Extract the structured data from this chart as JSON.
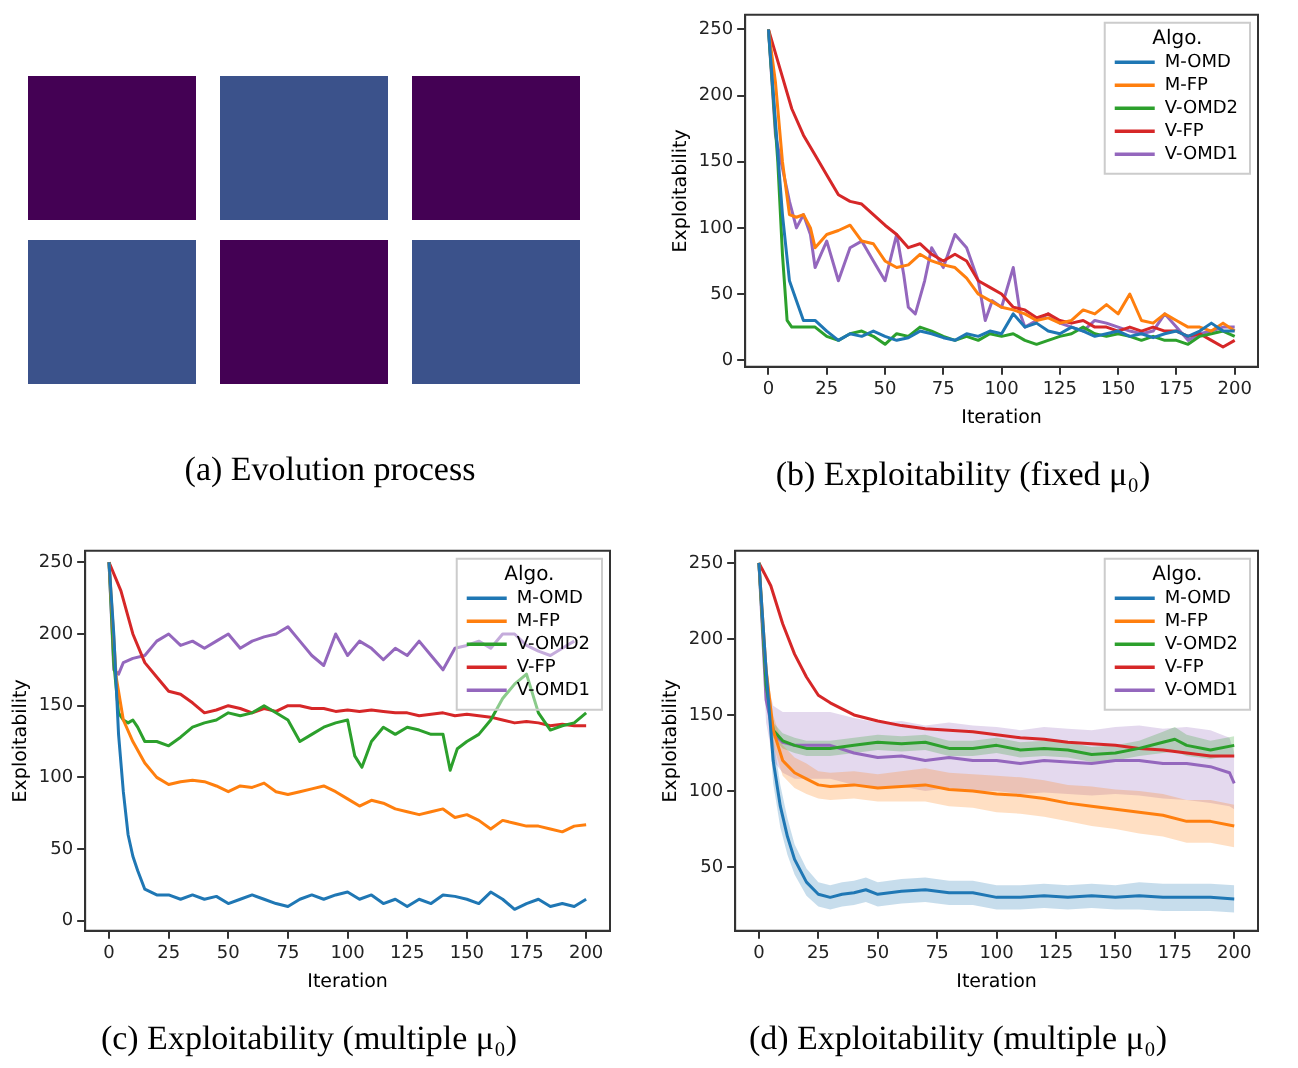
{
  "chart_data": [
    {
      "type": "other",
      "title": "(a) Evolution process"
    },
    {
      "type": "line",
      "title": "(b) Exploitability (fixed μ₀)",
      "xlabel": "Iteration",
      "ylabel": "Exploitability",
      "legend_title": "Algo.",
      "legend": "top right",
      "xlim": [
        -10,
        210
      ],
      "ylim": [
        -5,
        261
      ],
      "xticks": [
        0,
        25,
        50,
        75,
        100,
        125,
        150,
        175,
        200
      ],
      "yticks": [
        0,
        50,
        100,
        150,
        200,
        250
      ],
      "series": [
        {
          "name": "M-OMD",
          "color": "#1f77b4",
          "x": [
            0,
            3,
            6,
            9,
            12,
            15,
            20,
            25,
            30,
            35,
            40,
            45,
            50,
            55,
            60,
            65,
            70,
            75,
            80,
            85,
            90,
            95,
            100,
            105,
            110,
            115,
            120,
            125,
            130,
            135,
            140,
            145,
            150,
            155,
            160,
            165,
            170,
            175,
            180,
            185,
            190,
            195,
            200
          ],
          "values": [
            250,
            180,
            110,
            60,
            45,
            30,
            30,
            22,
            15,
            20,
            18,
            22,
            18,
            15,
            17,
            22,
            20,
            17,
            15,
            20,
            18,
            22,
            20,
            35,
            25,
            28,
            22,
            20,
            25,
            22,
            18,
            20,
            22,
            18,
            20,
            17,
            20,
            22,
            18,
            22,
            28,
            22,
            22
          ]
        },
        {
          "name": "M-FP",
          "color": "#ff7f0e",
          "x": [
            0,
            3,
            6,
            9,
            12,
            15,
            18,
            20,
            25,
            30,
            35,
            40,
            45,
            50,
            55,
            60,
            65,
            70,
            75,
            80,
            85,
            90,
            95,
            100,
            105,
            110,
            115,
            120,
            125,
            130,
            135,
            140,
            145,
            150,
            155,
            160,
            165,
            170,
            175,
            180,
            185,
            190,
            195,
            200
          ],
          "values": [
            250,
            210,
            150,
            110,
            108,
            110,
            100,
            85,
            95,
            98,
            102,
            90,
            88,
            75,
            70,
            72,
            80,
            75,
            72,
            70,
            62,
            50,
            45,
            40,
            38,
            35,
            30,
            32,
            28,
            30,
            38,
            35,
            42,
            35,
            50,
            30,
            28,
            35,
            30,
            25,
            25,
            22,
            28,
            22
          ]
        },
        {
          "name": "V-OMD2",
          "color": "#2ca02c",
          "x": [
            0,
            2,
            4,
            6,
            8,
            10,
            15,
            20,
            25,
            30,
            35,
            40,
            45,
            50,
            55,
            60,
            65,
            70,
            75,
            80,
            85,
            90,
            95,
            100,
            105,
            110,
            115,
            120,
            125,
            130,
            135,
            140,
            145,
            150,
            155,
            160,
            165,
            170,
            175,
            180,
            185,
            190,
            195,
            200
          ],
          "values": [
            250,
            200,
            150,
            80,
            30,
            25,
            25,
            25,
            18,
            15,
            20,
            22,
            18,
            12,
            20,
            18,
            25,
            22,
            18,
            15,
            18,
            15,
            20,
            18,
            20,
            15,
            12,
            15,
            18,
            20,
            25,
            20,
            18,
            20,
            18,
            15,
            18,
            15,
            15,
            12,
            18,
            20,
            22,
            18
          ]
        },
        {
          "name": "V-FP",
          "color": "#d62728",
          "x": [
            0,
            5,
            10,
            15,
            20,
            25,
            30,
            35,
            40,
            45,
            50,
            55,
            60,
            65,
            70,
            75,
            80,
            85,
            90,
            95,
            100,
            105,
            110,
            115,
            120,
            125,
            130,
            135,
            140,
            145,
            150,
            155,
            160,
            165,
            170,
            175,
            180,
            185,
            190,
            195,
            200
          ],
          "values": [
            250,
            220,
            190,
            170,
            155,
            140,
            125,
            120,
            118,
            110,
            102,
            95,
            85,
            88,
            80,
            75,
            80,
            75,
            60,
            55,
            50,
            40,
            38,
            32,
            35,
            30,
            28,
            30,
            25,
            25,
            22,
            25,
            22,
            25,
            22,
            22,
            18,
            20,
            15,
            10,
            15
          ]
        },
        {
          "name": "V-OMD1",
          "color": "#9467bd",
          "x": [
            0,
            3,
            6,
            9,
            12,
            15,
            18,
            20,
            25,
            30,
            35,
            40,
            45,
            50,
            55,
            58,
            60,
            63,
            67,
            70,
            75,
            80,
            85,
            90,
            93,
            96,
            100,
            105,
            108,
            110,
            115,
            120,
            125,
            130,
            135,
            140,
            145,
            150,
            155,
            160,
            165,
            170,
            175,
            180,
            185,
            190,
            195,
            200
          ],
          "values": [
            250,
            170,
            145,
            120,
            100,
            110,
            95,
            70,
            90,
            60,
            85,
            90,
            75,
            60,
            95,
            65,
            40,
            35,
            60,
            85,
            70,
            95,
            85,
            60,
            30,
            45,
            40,
            70,
            35,
            25,
            30,
            35,
            28,
            25,
            22,
            30,
            28,
            25,
            22,
            20,
            22,
            35,
            25,
            15,
            20,
            22,
            25,
            25
          ]
        }
      ]
    },
    {
      "type": "line",
      "title": "(c) Exploitability (multiple μ₀)",
      "xlabel": "Iteration",
      "ylabel": "Exploitability",
      "legend_title": "Algo.",
      "legend": "top right",
      "xlim": [
        -10,
        210
      ],
      "ylim": [
        -7,
        258
      ],
      "xticks": [
        0,
        25,
        50,
        75,
        100,
        125,
        150,
        175,
        200
      ],
      "yticks": [
        0,
        50,
        100,
        150,
        200,
        250
      ],
      "series": [
        {
          "name": "M-OMD",
          "color": "#1f77b4",
          "x": [
            0,
            2,
            4,
            6,
            8,
            10,
            12,
            15,
            20,
            25,
            30,
            35,
            40,
            45,
            50,
            55,
            60,
            65,
            70,
            75,
            80,
            85,
            90,
            95,
            100,
            105,
            110,
            115,
            120,
            125,
            130,
            135,
            140,
            145,
            150,
            155,
            160,
            165,
            170,
            175,
            180,
            185,
            190,
            195,
            200
          ],
          "values": [
            250,
            200,
            130,
            90,
            60,
            45,
            35,
            22,
            18,
            18,
            15,
            18,
            15,
            17,
            12,
            15,
            18,
            15,
            12,
            10,
            15,
            18,
            15,
            18,
            20,
            15,
            18,
            12,
            15,
            10,
            15,
            12,
            18,
            17,
            15,
            12,
            20,
            15,
            8,
            12,
            15,
            10,
            12,
            10,
            15
          ]
        },
        {
          "name": "M-FP",
          "color": "#ff7f0e",
          "x": [
            0,
            3,
            6,
            10,
            15,
            20,
            25,
            30,
            35,
            40,
            45,
            50,
            55,
            60,
            65,
            70,
            75,
            80,
            85,
            90,
            95,
            100,
            105,
            110,
            115,
            120,
            125,
            130,
            135,
            140,
            145,
            150,
            155,
            160,
            165,
            170,
            175,
            180,
            185,
            190,
            195,
            200
          ],
          "values": [
            250,
            170,
            140,
            125,
            110,
            100,
            95,
            97,
            98,
            97,
            94,
            90,
            94,
            93,
            96,
            90,
            88,
            90,
            92,
            94,
            90,
            85,
            80,
            84,
            82,
            78,
            76,
            74,
            76,
            78,
            72,
            74,
            70,
            64,
            70,
            68,
            66,
            66,
            64,
            62,
            66,
            67
          ]
        },
        {
          "name": "V-OMD2",
          "color": "#2ca02c",
          "x": [
            0,
            2,
            4,
            6,
            8,
            10,
            12,
            15,
            20,
            25,
            30,
            35,
            40,
            45,
            50,
            55,
            60,
            65,
            70,
            75,
            80,
            85,
            90,
            95,
            100,
            103,
            106,
            110,
            115,
            120,
            125,
            130,
            135,
            140,
            143,
            146,
            150,
            155,
            160,
            165,
            170,
            175,
            180,
            185,
            190,
            195,
            200
          ],
          "values": [
            250,
            180,
            145,
            140,
            138,
            140,
            135,
            125,
            125,
            122,
            128,
            135,
            138,
            140,
            145,
            143,
            145,
            150,
            145,
            140,
            125,
            130,
            135,
            138,
            140,
            115,
            107,
            125,
            135,
            130,
            135,
            133,
            130,
            130,
            105,
            120,
            125,
            130,
            140,
            155,
            165,
            172,
            145,
            133,
            136,
            138,
            145
          ]
        },
        {
          "name": "V-FP",
          "color": "#d62728",
          "x": [
            0,
            5,
            10,
            15,
            20,
            25,
            30,
            35,
            40,
            45,
            50,
            55,
            60,
            65,
            70,
            75,
            80,
            85,
            90,
            95,
            100,
            105,
            110,
            115,
            120,
            125,
            130,
            135,
            140,
            145,
            150,
            155,
            160,
            165,
            170,
            175,
            180,
            185,
            190,
            195,
            200
          ],
          "values": [
            250,
            230,
            200,
            180,
            170,
            160,
            158,
            152,
            145,
            147,
            150,
            148,
            145,
            148,
            146,
            150,
            150,
            148,
            148,
            146,
            147,
            146,
            147,
            146,
            145,
            145,
            143,
            144,
            145,
            143,
            144,
            143,
            142,
            140,
            138,
            139,
            138,
            136,
            137,
            136,
            136
          ]
        },
        {
          "name": "V-OMD1",
          "color": "#9467bd",
          "x": [
            0,
            2,
            4,
            6,
            10,
            15,
            20,
            25,
            30,
            35,
            40,
            45,
            50,
            55,
            60,
            65,
            70,
            75,
            80,
            85,
            90,
            95,
            100,
            105,
            110,
            115,
            120,
            125,
            130,
            135,
            140,
            145,
            150,
            155,
            160,
            165,
            170,
            175,
            180,
            185,
            190,
            195
          ],
          "values": [
            250,
            175,
            172,
            180,
            183,
            185,
            195,
            200,
            192,
            195,
            190,
            195,
            200,
            190,
            195,
            198,
            200,
            205,
            195,
            185,
            178,
            200,
            185,
            195,
            190,
            182,
            190,
            185,
            195,
            185,
            175,
            190,
            192,
            195,
            190,
            200,
            200,
            192,
            188,
            185,
            190,
            195
          ]
        }
      ]
    },
    {
      "type": "line",
      "title": "(d) Exploitability (multiple μ₀)",
      "xlabel": "Iteration",
      "ylabel": "Exploitability",
      "legend_title": "Algo.",
      "legend": "top right",
      "xlim": [
        -10,
        210
      ],
      "ylim": [
        8,
        258
      ],
      "xticks": [
        0,
        25,
        50,
        75,
        100,
        125,
        150,
        175,
        200
      ],
      "yticks": [
        50,
        100,
        150,
        200,
        250
      ],
      "series": [
        {
          "name": "M-OMD",
          "color": "#1f77b4",
          "x": [
            0,
            3,
            6,
            9,
            12,
            15,
            20,
            25,
            30,
            35,
            40,
            45,
            50,
            60,
            70,
            80,
            90,
            100,
            110,
            120,
            130,
            140,
            150,
            160,
            170,
            180,
            190,
            200
          ],
          "values": [
            250,
            180,
            120,
            90,
            70,
            55,
            40,
            32,
            30,
            32,
            33,
            35,
            32,
            34,
            35,
            33,
            33,
            30,
            30,
            31,
            30,
            31,
            30,
            31,
            30,
            30,
            30,
            29
          ],
          "lower": [
            250,
            168,
            105,
            76,
            58,
            45,
            31,
            24,
            22,
            24,
            25,
            27,
            24,
            26,
            27,
            25,
            25,
            22,
            22,
            23,
            22,
            23,
            22,
            22,
            21,
            21,
            21,
            20
          ],
          "upper": [
            250,
            192,
            135,
            104,
            82,
            65,
            49,
            40,
            38,
            40,
            41,
            43,
            40,
            42,
            43,
            41,
            41,
            38,
            38,
            39,
            38,
            39,
            38,
            40,
            39,
            39,
            39,
            38
          ]
        },
        {
          "name": "M-FP",
          "color": "#ff7f0e",
          "x": [
            0,
            3,
            6,
            10,
            15,
            20,
            25,
            30,
            40,
            50,
            60,
            70,
            80,
            90,
            100,
            110,
            120,
            130,
            140,
            150,
            160,
            170,
            180,
            190,
            200
          ],
          "values": [
            250,
            180,
            140,
            120,
            112,
            108,
            104,
            103,
            104,
            102,
            103,
            104,
            101,
            100,
            98,
            97,
            95,
            92,
            90,
            88,
            86,
            84,
            80,
            80,
            77
          ],
          "lower": [
            250,
            172,
            130,
            110,
            102,
            98,
            95,
            94,
            95,
            93,
            93,
            93,
            90,
            89,
            86,
            85,
            83,
            80,
            77,
            75,
            72,
            70,
            66,
            66,
            63
          ],
          "upper": [
            250,
            188,
            150,
            130,
            122,
            118,
            113,
            112,
            113,
            111,
            113,
            115,
            112,
            111,
            110,
            109,
            107,
            104,
            103,
            101,
            100,
            98,
            94,
            94,
            91
          ]
        },
        {
          "name": "V-OMD2",
          "color": "#2ca02c",
          "x": [
            0,
            3,
            6,
            10,
            15,
            20,
            30,
            40,
            50,
            60,
            70,
            80,
            90,
            100,
            110,
            120,
            130,
            140,
            150,
            160,
            170,
            175,
            180,
            190,
            200
          ],
          "values": [
            250,
            170,
            140,
            133,
            130,
            128,
            128,
            130,
            132,
            131,
            132,
            128,
            128,
            130,
            127,
            128,
            127,
            124,
            125,
            128,
            132,
            134,
            130,
            127,
            130
          ],
          "lower": [
            250,
            165,
            135,
            128,
            125,
            123,
            123,
            125,
            127,
            126,
            127,
            123,
            123,
            125,
            122,
            123,
            122,
            119,
            120,
            123,
            125,
            126,
            123,
            121,
            124
          ],
          "upper": [
            250,
            175,
            145,
            138,
            135,
            133,
            133,
            135,
            137,
            136,
            137,
            133,
            133,
            135,
            132,
            133,
            132,
            129,
            130,
            133,
            139,
            142,
            137,
            133,
            136
          ]
        },
        {
          "name": "V-FP",
          "color": "#d62728",
          "x": [
            0,
            5,
            10,
            15,
            20,
            25,
            30,
            40,
            50,
            60,
            70,
            80,
            90,
            100,
            110,
            120,
            130,
            140,
            150,
            160,
            170,
            180,
            190,
            200
          ],
          "values": [
            250,
            235,
            210,
            190,
            175,
            163,
            158,
            150,
            146,
            143,
            141,
            140,
            139,
            137,
            135,
            134,
            132,
            131,
            130,
            128,
            127,
            125,
            123,
            123
          ]
        },
        {
          "name": "V-OMD1",
          "color": "#9467bd",
          "x": [
            0,
            3,
            6,
            10,
            15,
            20,
            30,
            40,
            50,
            60,
            70,
            80,
            90,
            100,
            110,
            120,
            130,
            140,
            150,
            160,
            170,
            180,
            190,
            198,
            200
          ],
          "values": [
            250,
            160,
            138,
            132,
            130,
            130,
            130,
            125,
            122,
            123,
            120,
            122,
            120,
            120,
            118,
            120,
            119,
            118,
            120,
            120,
            118,
            118,
            116,
            112,
            105
          ],
          "lower": [
            250,
            145,
            120,
            112,
            108,
            108,
            108,
            104,
            102,
            103,
            100,
            102,
            100,
            100,
            98,
            99,
            98,
            97,
            98,
            97,
            95,
            94,
            92,
            90,
            88
          ],
          "upper": [
            250,
            175,
            156,
            152,
            152,
            152,
            152,
            148,
            145,
            146,
            143,
            145,
            143,
            142,
            140,
            142,
            141,
            140,
            142,
            143,
            141,
            142,
            140,
            135,
            125
          ]
        }
      ]
    }
  ]
}
